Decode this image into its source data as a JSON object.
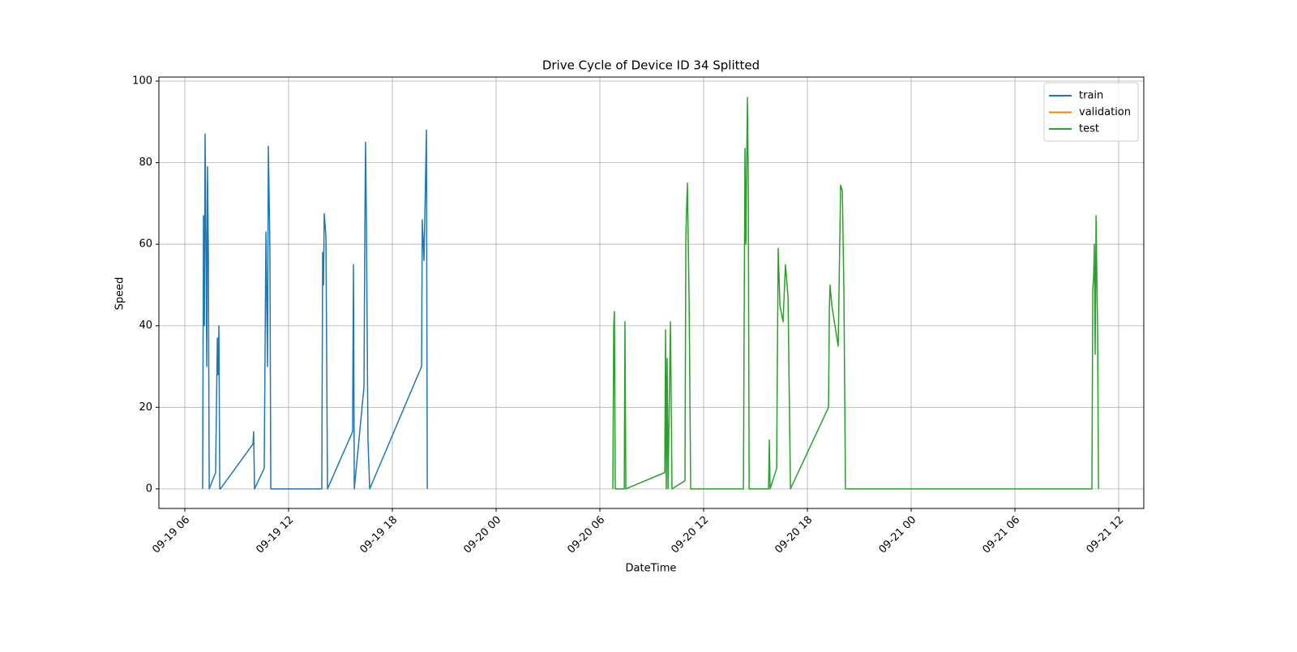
{
  "chart_data": {
    "type": "line",
    "title": "Drive Cycle of Device ID 34 Splitted",
    "xlabel": "DateTime",
    "ylabel": "Speed",
    "xlim": [
      4.5,
      61.45
    ],
    "ylim": [
      -4.8,
      101
    ],
    "xticks": [
      {
        "value": 6,
        "label": "09-19 06"
      },
      {
        "value": 12,
        "label": "09-19 12"
      },
      {
        "value": 18,
        "label": "09-19 18"
      },
      {
        "value": 24,
        "label": "09-20 00"
      },
      {
        "value": 30,
        "label": "09-20 06"
      },
      {
        "value": 36,
        "label": "09-20 12"
      },
      {
        "value": 42,
        "label": "09-20 18"
      },
      {
        "value": 48,
        "label": "09-21 00"
      },
      {
        "value": 54,
        "label": "09-21 06"
      },
      {
        "value": 60,
        "label": "09-21 12"
      }
    ],
    "yticks": [
      0,
      20,
      40,
      60,
      80,
      100
    ],
    "grid": true,
    "legend": "upper right",
    "series": [
      {
        "name": "train",
        "color": "#1f77b4",
        "x": [
          7.03,
          7.08,
          7.13,
          7.17,
          7.22,
          7.27,
          7.31,
          7.36,
          7.41,
          7.78,
          7.88,
          7.92,
          7.97,
          8.02,
          8.06,
          9.94,
          9.98,
          10.03,
          10.59,
          10.69,
          10.78,
          10.83,
          10.92,
          10.97,
          13.92,
          13.97,
          14.02,
          14.06,
          14.16,
          14.25,
          15.7,
          15.75,
          15.8,
          16.36,
          16.41,
          16.45,
          16.5,
          16.59,
          16.69,
          19.69,
          19.73,
          19.83,
          19.97,
          20.02
        ],
        "values": [
          0,
          67,
          40,
          87,
          62,
          30,
          79,
          58,
          0,
          4,
          37,
          28,
          40,
          0,
          0,
          11,
          14,
          0,
          5,
          63,
          30,
          84,
          59,
          0,
          0,
          58,
          50,
          67.5,
          62,
          0,
          14,
          55,
          0,
          25,
          64,
          85,
          65,
          12,
          0,
          30,
          66,
          56,
          88,
          0
        ]
      },
      {
        "name": "validation",
        "color": "#ff7f0e",
        "x": [],
        "values": []
      },
      {
        "name": "test",
        "color": "#2ca02c",
        "x": [
          30.75,
          30.8,
          30.84,
          30.89,
          31.41,
          31.45,
          31.5,
          33.75,
          33.8,
          33.84,
          33.89,
          33.94,
          34.08,
          34.17,
          34.92,
          34.97,
          35.06,
          35.16,
          35.25,
          38.3,
          38.34,
          38.39,
          38.44,
          38.53,
          38.58,
          38.63,
          39.75,
          39.8,
          39.84,
          40.22,
          40.31,
          40.41,
          40.5,
          40.59,
          40.73,
          40.88,
          41.02,
          43.22,
          43.27,
          43.31,
          43.41,
          43.78,
          43.92,
          44.02,
          44.11,
          44.2,
          58.45,
          58.5,
          58.55,
          58.59,
          58.64,
          58.69,
          58.78,
          58.83
        ],
        "values": [
          0,
          40,
          43.5,
          0,
          0,
          41,
          0,
          4,
          39,
          0,
          32,
          0,
          41,
          0,
          2,
          62,
          75,
          46,
          0,
          0,
          40,
          83.5,
          60,
          96,
          76,
          0,
          0,
          12,
          0,
          5,
          59,
          45,
          43,
          41,
          55,
          47,
          0,
          20,
          44,
          50,
          45,
          35,
          74.5,
          73,
          48,
          0,
          0,
          49,
          52,
          60,
          33,
          67,
          38,
          0
        ]
      }
    ]
  }
}
